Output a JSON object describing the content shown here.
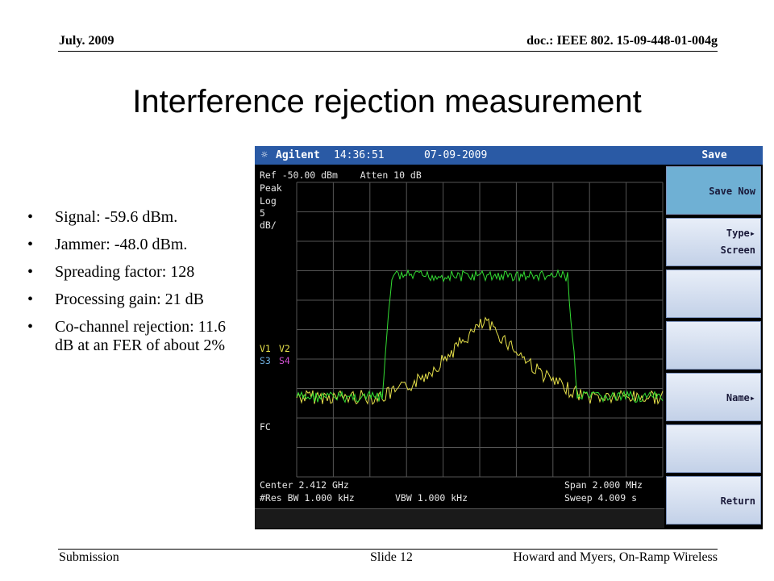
{
  "header": {
    "date": "July. 2009",
    "doc_id": "doc.: IEEE 802. 15-09-448-01-004g"
  },
  "title": "Interference rejection measurement",
  "bullets": [
    "Signal: -59.6 dBm.",
    "Jammer: -48.0 dBm.",
    "Spreading factor: 128",
    "Processing gain: 21 dB",
    "Co-channel rejection: 11.6 dB at an FER of about 2%"
  ],
  "footer": {
    "left": "Submission",
    "center": "Slide 12",
    "right": "Howard and Myers, On-Ramp Wireless"
  },
  "instrument": {
    "brand": "Agilent",
    "time": "14:36:51",
    "date": "07-09-2009",
    "menu_title": "Save",
    "ref_line": "Ref -50.00 dBm    Atten 10 dB",
    "mode": "Peak",
    "scale": "Log",
    "div": "5",
    "units": "dB/",
    "v1": "V1",
    "v2": "V2",
    "s3": "S3",
    "s4": "S4",
    "fc": "FC",
    "center": "Center 2.412 GHz",
    "span": "Span 2.000 MHz",
    "res_bw": "#Res BW 1.000 kHz",
    "vbw": "VBW 1.000 kHz",
    "sweep": "Sweep 4.009 s",
    "softkeys": {
      "save_now": "Save Now",
      "type": "Type▸",
      "type_value": "Screen",
      "name": "Name▸",
      "return": "Return"
    },
    "colors": {
      "signal_trace": "#33dd33",
      "jammer_trace": "#e6e04a",
      "grid": "#555555",
      "topbar": "#2a5aa5",
      "active_key": "#6fb0d4"
    }
  }
}
